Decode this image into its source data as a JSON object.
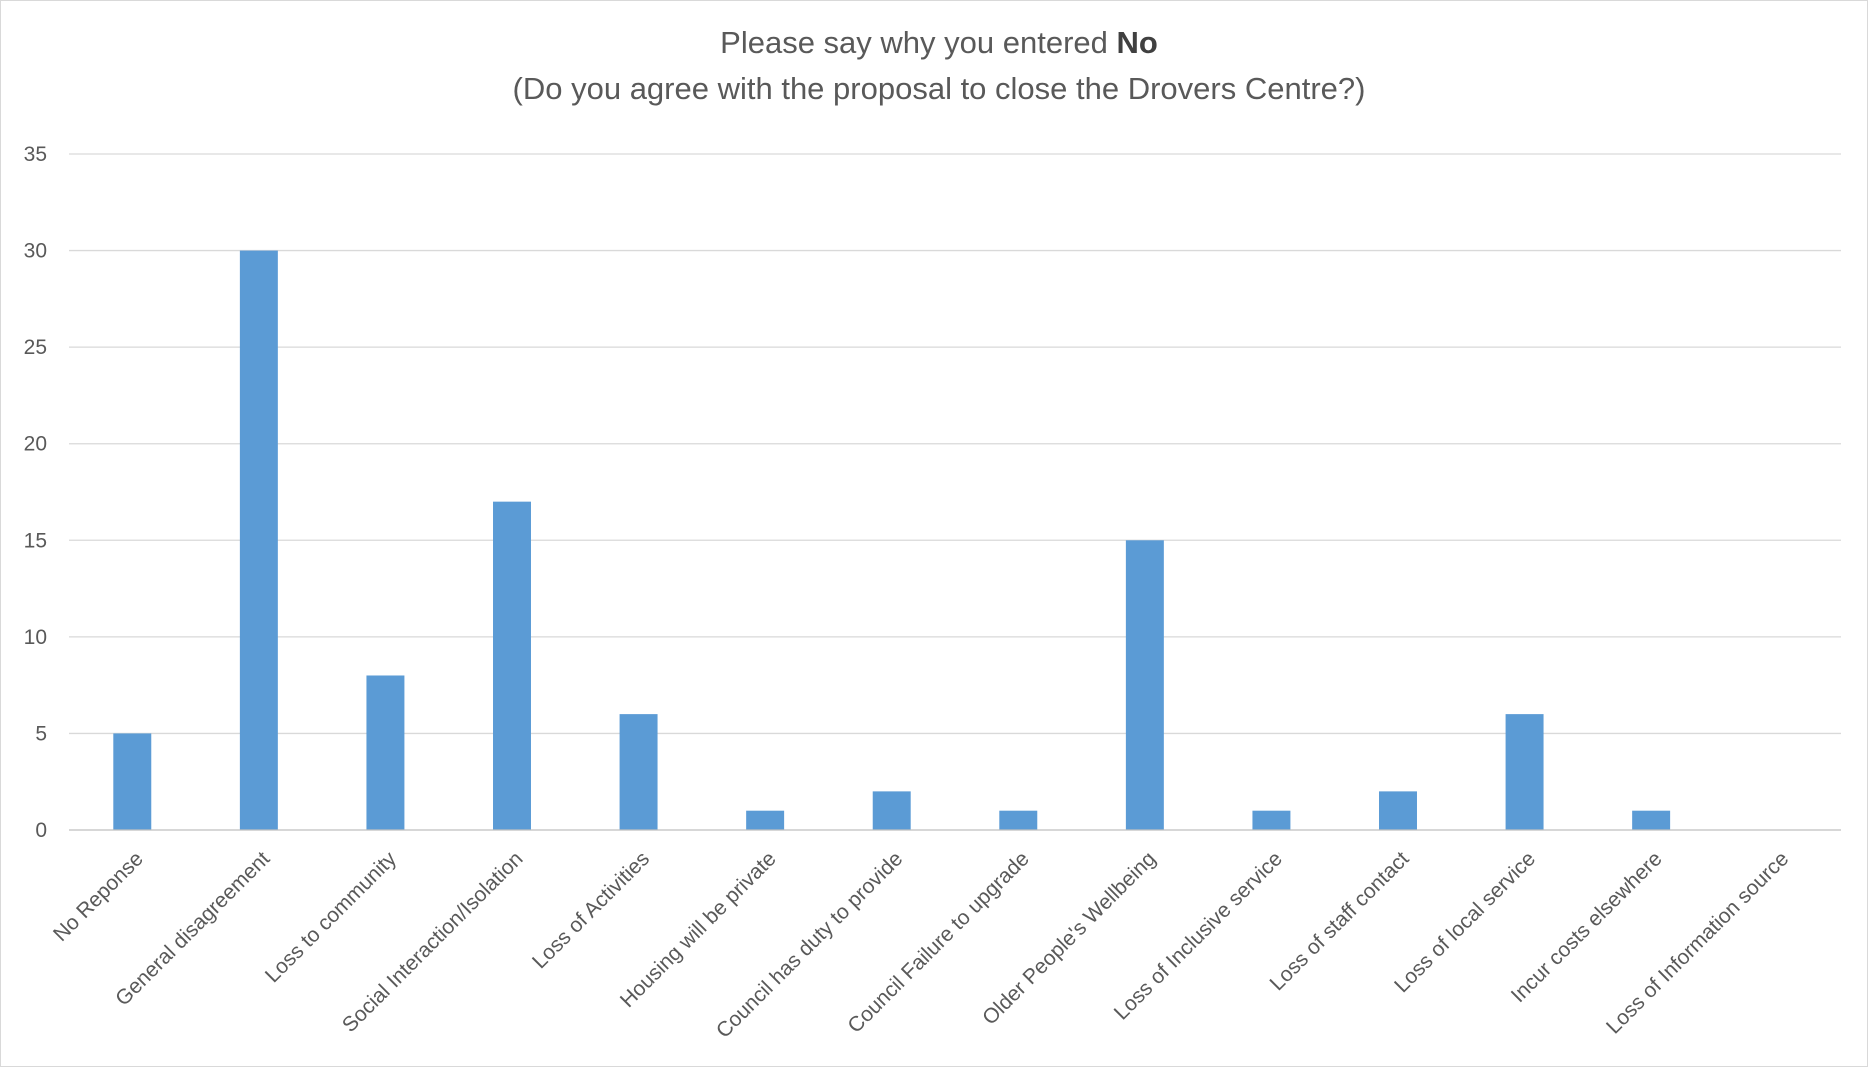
{
  "chart_data": {
    "type": "bar",
    "title_line1_prefix": "Please say why you entered ",
    "title_line1_bold": "No",
    "title_line2": "(Do you agree with the proposal to close the Drovers Centre?)",
    "xlabel": "",
    "ylabel": "",
    "ylim": [
      0,
      35
    ],
    "yticks": [
      0,
      5,
      10,
      15,
      20,
      25,
      30,
      35
    ],
    "grid": true,
    "legend": "none",
    "bar_color": "#5b9bd5",
    "categories": [
      "No Reponse",
      "General disagreement",
      "Loss to community",
      "Social Interaction/Isolation",
      "Loss of Activities",
      "Housing will be private",
      "Council has duty to provide",
      "Council Failure to upgrade",
      "Older People's Wellbeing",
      "Loss of Inclusive service",
      "Loss of staff contact",
      "Loss of local service",
      "Incur costs elsewhere",
      "Loss of Information source"
    ],
    "values": [
      5,
      30,
      8,
      17,
      6,
      1,
      2,
      1,
      15,
      1,
      2,
      6,
      1,
      0
    ]
  }
}
